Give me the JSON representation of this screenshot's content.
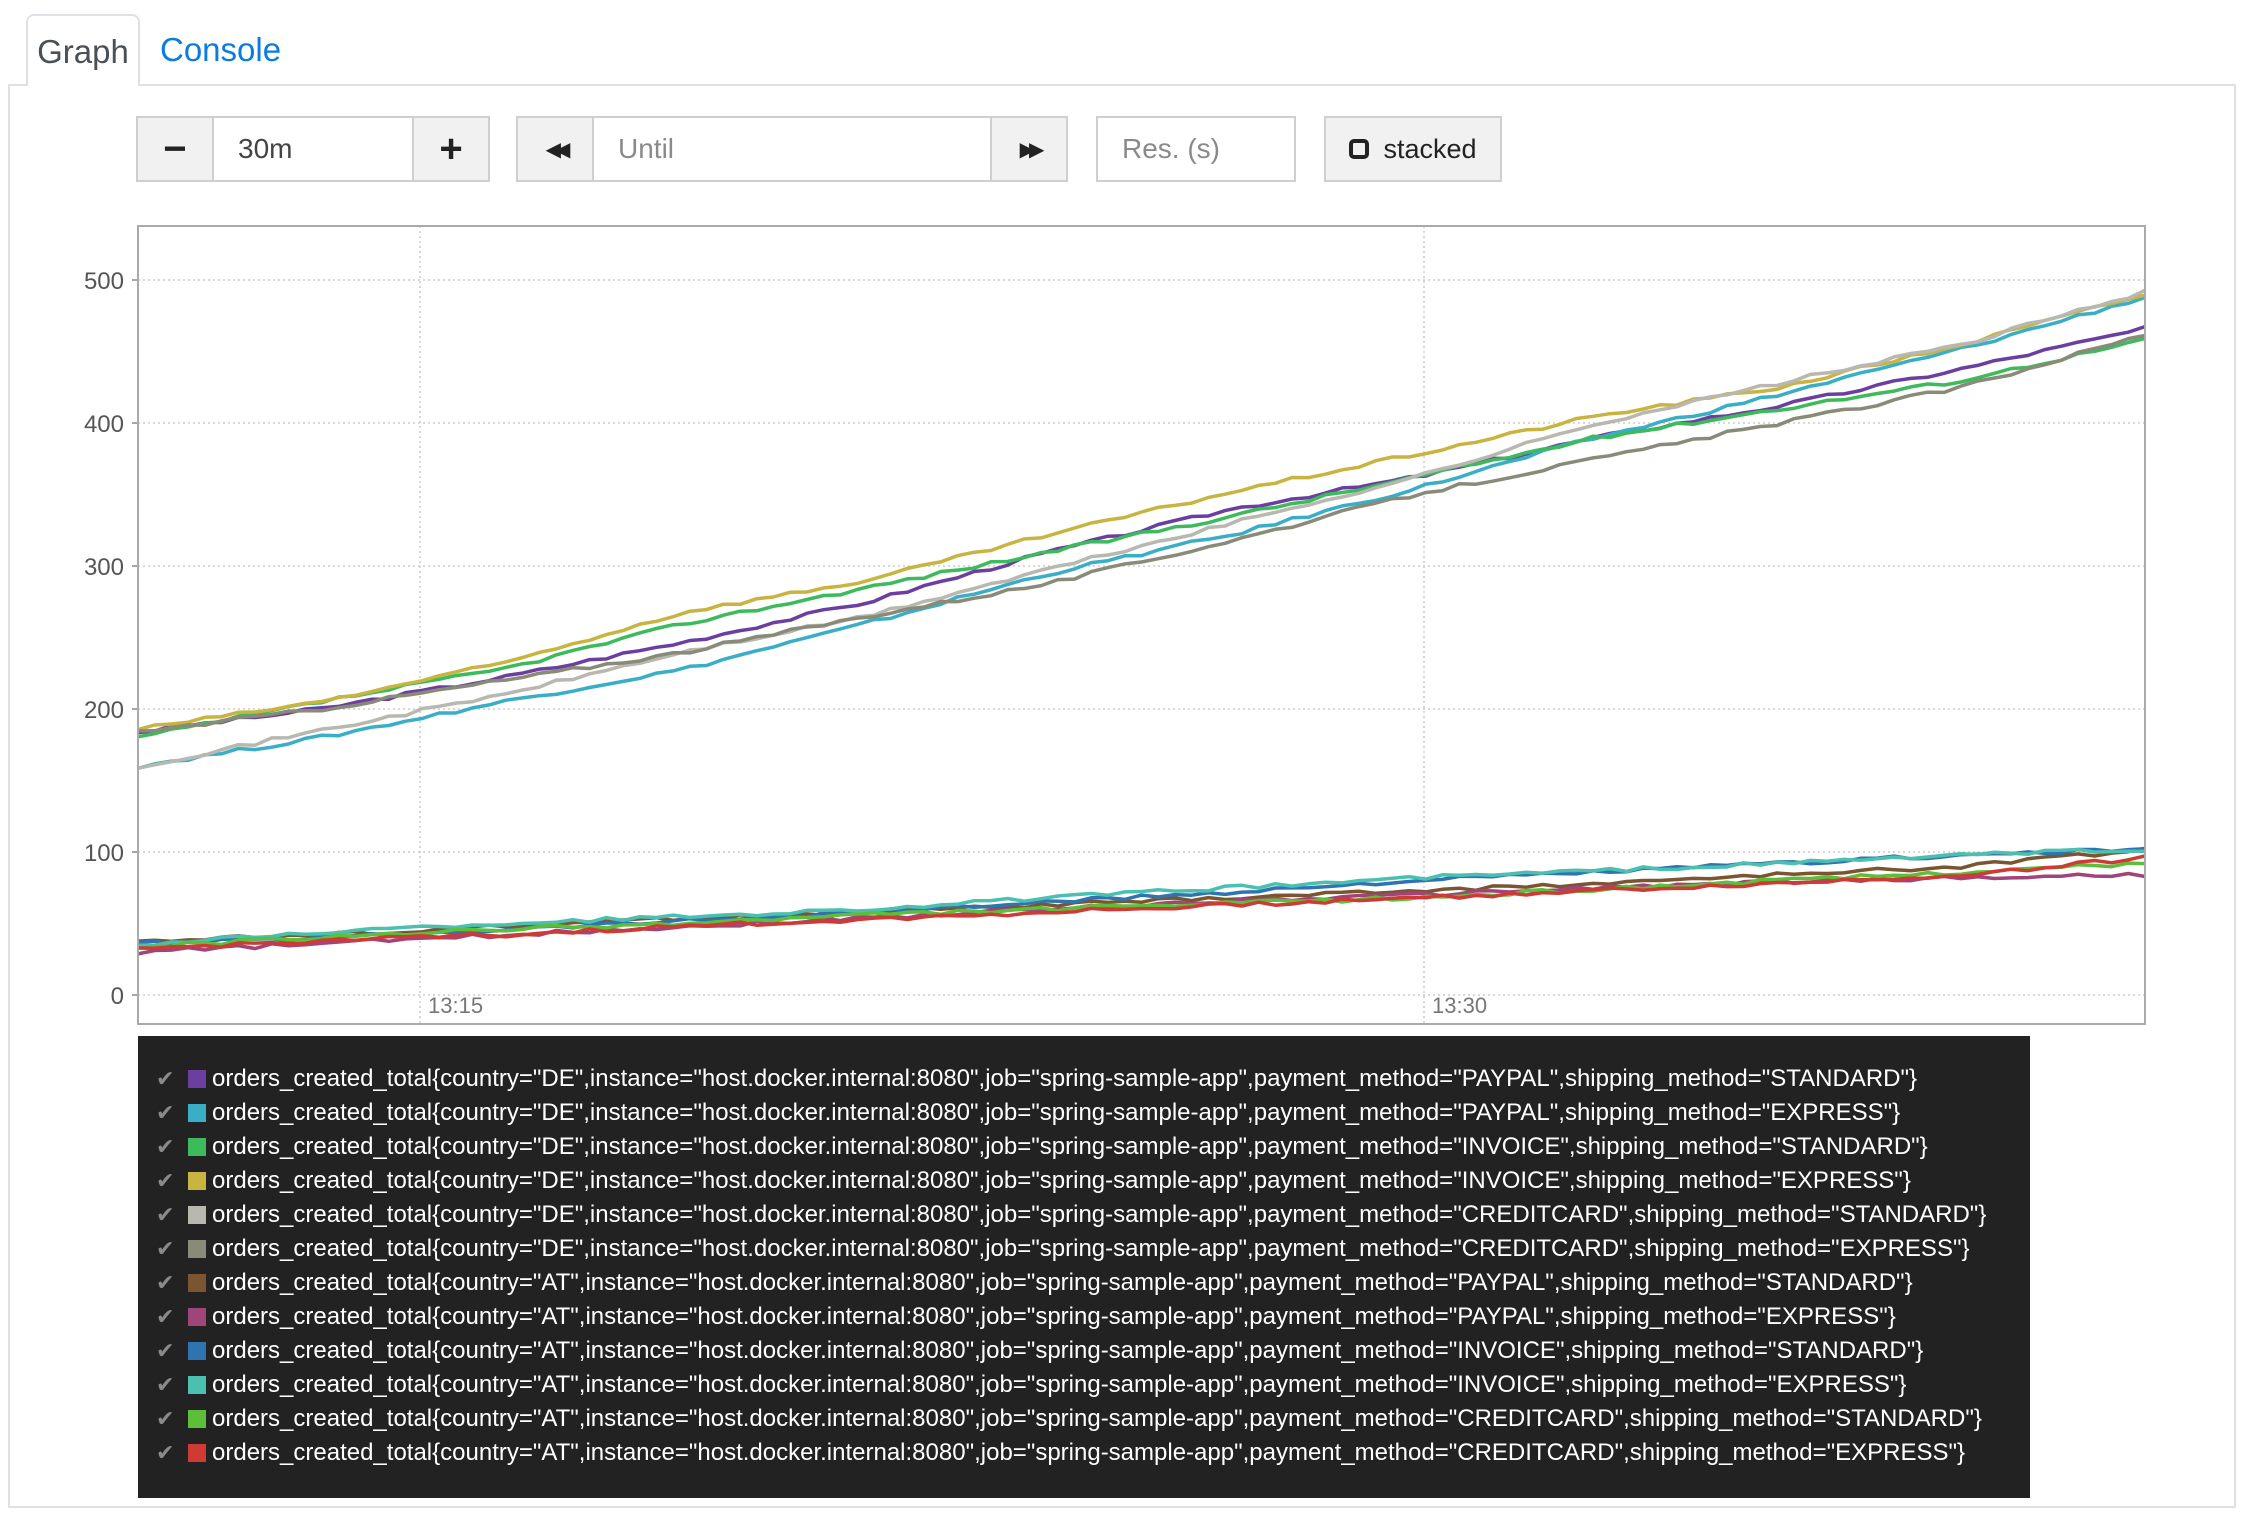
{
  "tabs": {
    "graph": "Graph",
    "console": "Console"
  },
  "controls": {
    "range_minus": "−",
    "range_value": "30m",
    "range_plus": "+",
    "back": "◀◀",
    "until_placeholder": "Until",
    "forward": "▶▶",
    "res_placeholder": "Res. (s)",
    "stacked_label": "stacked"
  },
  "chart_data": {
    "type": "line",
    "ylim": [
      0,
      520
    ],
    "yticks": [
      "0",
      "100",
      "200",
      "300",
      "400",
      "500"
    ],
    "xticks": [
      "13:15",
      "13:30"
    ],
    "series": [
      {
        "name": "orders_created_total{country=\"DE\",instance=\"host.docker.internal:8080\",job=\"spring-sample-app\",payment_method=\"PAYPAL\",shipping_method=\"STANDARD\"}",
        "color": "#6a3fa0",
        "values": [
          184,
          200,
          222,
          247,
          275,
          310,
          340,
          362,
          390,
          412,
          438,
          466
        ]
      },
      {
        "name": "orders_created_total{country=\"DE\",instance=\"host.docker.internal:8080\",job=\"spring-sample-app\",payment_method=\"PAYPAL\",shipping_method=\"EXPRESS\"}",
        "color": "#3aaec6",
        "values": [
          160,
          180,
          205,
          228,
          260,
          295,
          322,
          354,
          390,
          420,
          452,
          488
        ]
      },
      {
        "name": "orders_created_total{country=\"DE\",instance=\"host.docker.internal:8080\",job=\"spring-sample-app\",payment_method=\"INVOICE\",shipping_method=\"STANDARD\"}",
        "color": "#3cba5c",
        "values": [
          180,
          205,
          228,
          260,
          285,
          310,
          335,
          362,
          390,
          410,
          430,
          458
        ]
      },
      {
        "name": "orders_created_total{country=\"DE\",instance=\"host.docker.internal:8080\",job=\"spring-sample-app\",payment_method=\"INVOICE\",shipping_method=\"EXPRESS\"}",
        "color": "#c8b440",
        "values": [
          186,
          205,
          232,
          268,
          290,
          322,
          352,
          378,
          405,
          425,
          455,
          490
        ]
      },
      {
        "name": "orders_created_total{country=\"DE\",instance=\"host.docker.internal:8080\",job=\"spring-sample-app\",payment_method=\"CREDITCARD\",shipping_method=\"STANDARD\"}",
        "color": "#b8b8b0",
        "values": [
          160,
          185,
          210,
          240,
          265,
          298,
          330,
          362,
          400,
          428,
          455,
          492
        ]
      },
      {
        "name": "orders_created_total{country=\"DE\",instance=\"host.docker.internal:8080\",job=\"spring-sample-app\",payment_method=\"CREDITCARD\",shipping_method=\"EXPRESS\"}",
        "color": "#8a8a78",
        "values": [
          184,
          200,
          220,
          240,
          265,
          288,
          318,
          350,
          375,
          400,
          425,
          462
        ]
      },
      {
        "name": "orders_created_total{country=\"AT\",instance=\"host.docker.internal:8080\",job=\"spring-sample-app\",payment_method=\"PAYPAL\",shipping_method=\"STANDARD\"}",
        "color": "#7a5530",
        "values": [
          38,
          42,
          48,
          54,
          58,
          63,
          68,
          73,
          78,
          84,
          90,
          102
        ]
      },
      {
        "name": "orders_created_total{country=\"AT\",instance=\"host.docker.internal:8080\",job=\"spring-sample-app\",payment_method=\"PAYPAL\",shipping_method=\"EXPRESS\"}",
        "color": "#a0457a",
        "values": [
          30,
          36,
          42,
          48,
          54,
          60,
          66,
          70,
          75,
          79,
          82,
          84
        ]
      },
      {
        "name": "orders_created_total{country=\"AT\",instance=\"host.docker.internal:8080\",job=\"spring-sample-app\",payment_method=\"INVOICE\",shipping_method=\"STANDARD\"}",
        "color": "#2f74b0",
        "values": [
          36,
          40,
          46,
          52,
          58,
          65,
          72,
          80,
          86,
          92,
          98,
          102
        ]
      },
      {
        "name": "orders_created_total{country=\"AT\",instance=\"host.docker.internal:8080\",job=\"spring-sample-app\",payment_method=\"INVOICE\",shipping_method=\"EXPRESS\"}",
        "color": "#4cc0b0",
        "values": [
          35,
          44,
          50,
          55,
          60,
          68,
          75,
          82,
          87,
          92,
          98,
          102
        ]
      },
      {
        "name": "orders_created_total{country=\"AT\",instance=\"host.docker.internal:8080\",job=\"spring-sample-app\",payment_method=\"CREDITCARD\",shipping_method=\"STANDARD\"}",
        "color": "#5cbf3a",
        "values": [
          34,
          40,
          46,
          50,
          56,
          60,
          64,
          68,
          74,
          80,
          86,
          92
        ]
      },
      {
        "name": "orders_created_total{country=\"AT\",instance=\"host.docker.internal:8080\",job=\"spring-sample-app\",payment_method=\"CREDITCARD\",shipping_method=\"EXPRESS\"}",
        "color": "#d03a34",
        "values": [
          32,
          38,
          42,
          48,
          53,
          58,
          63,
          68,
          73,
          78,
          84,
          96
        ]
      }
    ]
  }
}
